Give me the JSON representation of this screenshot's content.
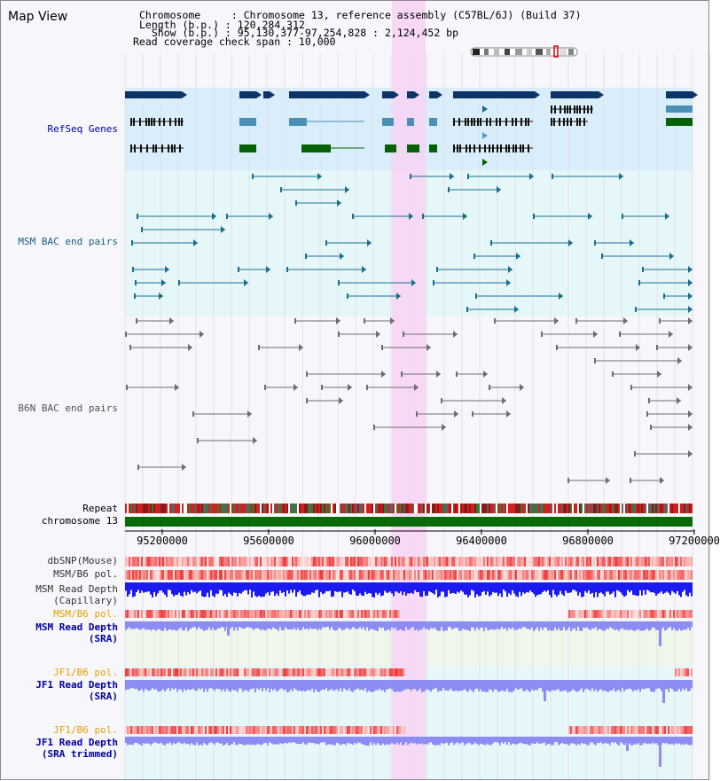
{
  "header": {
    "title": "Map View",
    "chromosome_line": "Chromosome     : Chromosome 13, reference assembly (C57BL/6J) (Build 37)",
    "length_line": "Length (b.p.) : 120,284,312",
    "show_line": "  Show (b.p.) : 95,130,377-97,254,828 : 2,124,452 bp",
    "coverage_line": "Read coverage check span : 10,000"
  },
  "tracks": {
    "refseq": "RefSeq Genes",
    "msm_bac": "MSM BAC end pairs",
    "b6n_bac": "B6N BAC end pairs",
    "repeat": "Repeat",
    "chromosome": "chromosome 13"
  },
  "axis": {
    "ticks": [
      "95200000",
      "95600000",
      "96000000",
      "96400000",
      "96800000",
      "97200000"
    ]
  },
  "lower_tracks": {
    "dbsnp": "dbSNP(Mouse)",
    "msm_b6_pol_1": "MSM/B6 pol.",
    "msm_read_depth_cap_1": "MSM Read Depth",
    "msm_read_depth_cap_2": "(Capillary)",
    "msm_b6_pol_2": "MSM/B6 pol.",
    "msm_read_depth_sra_1": "MSM Read Depth",
    "msm_read_depth_sra_2": "(SRA)",
    "jf1_b6_pol_1": "JF1/B6 pol.",
    "jf1_read_depth_sra_1": "JF1 Read Depth",
    "jf1_read_depth_sra_2": "(SRA)",
    "jf1_b6_pol_2": "JF1/B6 pol.",
    "jf1_read_depth_trim_1": "JF1 Read Depth",
    "jf1_read_depth_trim_2": "(SRA trimmed)"
  },
  "colors": {
    "gene_dark": "#0c3466",
    "gene_mid": "#4a8fb4",
    "gene_green": "#056105",
    "msm_bac": "#1b6f8e",
    "b6n_bac": "#6e6e6e",
    "chromosome_bar": "#0a6a0a",
    "highlight": "#f7d4f5",
    "depth_blue": "#1b1bf0",
    "depth_light": "#8c8cf5",
    "pol_label": "#e8a000",
    "label_blue": "#0000a0"
  }
}
